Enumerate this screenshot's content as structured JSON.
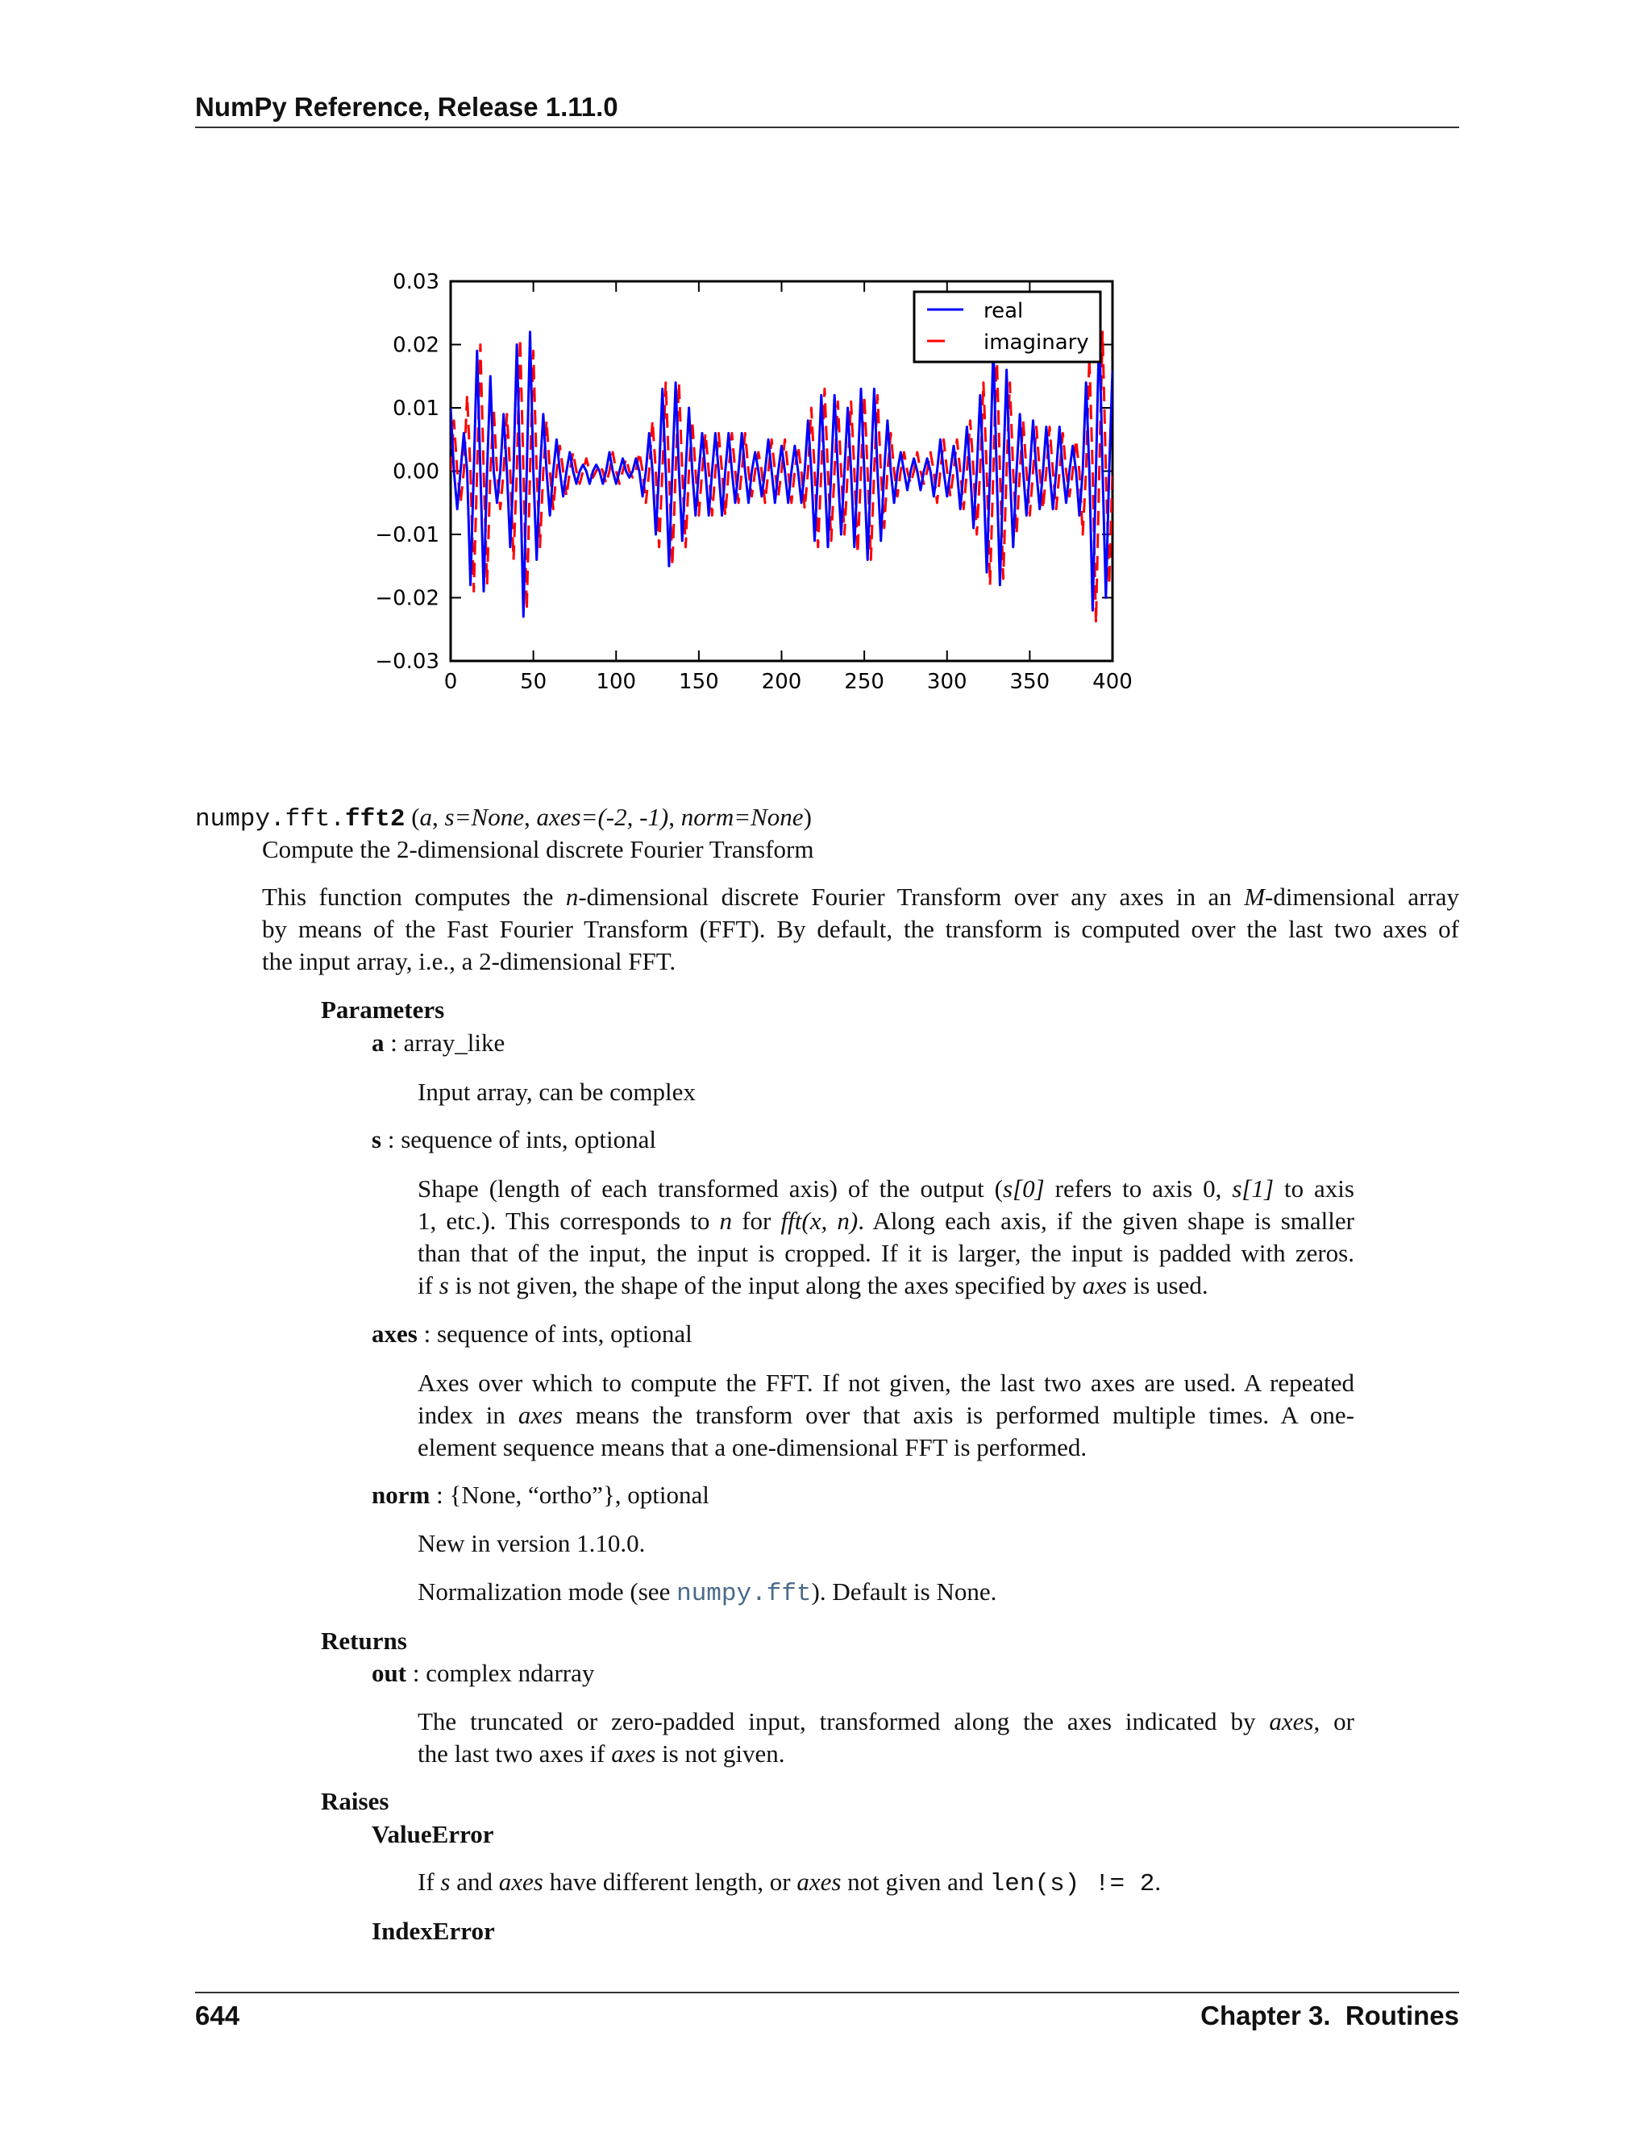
{
  "header": {
    "title": "NumPy Reference, Release 1.11.0"
  },
  "footer": {
    "page": "644",
    "chapter": "Chapter 3.  Routines"
  },
  "chart_data": {
    "type": "line",
    "xlim": [
      0,
      400
    ],
    "ylim": [
      -0.03,
      0.03
    ],
    "x_ticks": [
      "0",
      "50",
      "100",
      "150",
      "200",
      "250",
      "300",
      "350",
      "400"
    ],
    "y_ticks": [
      "0.03",
      "0.02",
      "0.01",
      "0.00",
      "−0.01",
      "−0.02",
      "−0.03"
    ],
    "legend_position": "top-right",
    "grid": false,
    "x_step": 2,
    "series": [
      {
        "name": "real",
        "color": "#0000ff",
        "style": "solid",
        "values": [
          0.01,
          0,
          -0.006,
          0,
          0.006,
          0,
          -0.018,
          0,
          0.019,
          0,
          -0.019,
          0,
          0.015,
          0,
          -0.005,
          0,
          0.009,
          0,
          -0.012,
          0,
          0.02,
          0,
          -0.023,
          0,
          0.022,
          0,
          -0.014,
          0,
          0.009,
          0,
          -0.007,
          0,
          0.005,
          0,
          -0.004,
          0,
          0.003,
          0,
          -0.002,
          0,
          0.001,
          0,
          -0.002,
          0,
          0.001,
          0,
          -0.002,
          0,
          0.003,
          0,
          -0.002,
          0,
          0.002,
          0,
          -0.001,
          0,
          0.002,
          0,
          -0.004,
          0,
          0.006,
          0,
          -0.01,
          0,
          0.013,
          0,
          -0.015,
          0,
          0.014,
          0,
          -0.011,
          0,
          0.01,
          0,
          -0.007,
          0,
          0.006,
          0,
          -0.007,
          0,
          0.006,
          0,
          -0.007,
          0,
          0.006,
          0,
          -0.005,
          0,
          0.006,
          0,
          -0.005,
          0,
          0.003,
          0,
          -0.004,
          0,
          0.005,
          0,
          -0.005,
          0,
          0.004,
          0,
          -0.005,
          0,
          0.004,
          0,
          -0.005,
          0,
          0.008,
          0,
          -0.011,
          0,
          0.012,
          0,
          -0.012,
          0,
          0.012,
          0,
          -0.01,
          0,
          0.01,
          0,
          -0.012,
          0,
          0.013,
          0,
          -0.014,
          0,
          0.013,
          0,
          -0.011,
          0,
          0.008,
          0,
          -0.005,
          0,
          0.003,
          0,
          -0.003,
          0,
          0.002,
          0,
          -0.003,
          0,
          0.002,
          0,
          -0.004,
          0,
          0.005,
          0,
          -0.004,
          0,
          0.004,
          0,
          -0.006,
          0,
          0.007,
          0,
          -0.009,
          0,
          0.012,
          0,
          -0.016,
          0,
          0.02,
          0,
          -0.018,
          0,
          0.016,
          0,
          -0.012,
          0,
          0.009,
          0,
          -0.007,
          0,
          0.008,
          0,
          -0.006,
          0,
          0.007,
          0,
          -0.006,
          0,
          0.007,
          0,
          -0.005,
          0,
          0.004,
          0,
          -0.007,
          0,
          0.014,
          0,
          -0.022,
          0,
          0.023,
          0,
          -0.02,
          0,
          0.016
        ]
      },
      {
        "name": "imaginary",
        "color": "#ff0000",
        "style": "dashed",
        "values": [
          0,
          0.008,
          0,
          -0.005,
          0,
          0.012,
          0,
          -0.019,
          0,
          0.02,
          0,
          -0.018,
          0,
          0.01,
          0,
          -0.006,
          0,
          0.009,
          0,
          -0.014,
          0,
          0.021,
          0,
          -0.022,
          0,
          0.019,
          0,
          -0.012,
          0,
          0.008,
          0,
          -0.006,
          0,
          0.004,
          0,
          -0.004,
          0,
          0.003,
          0,
          -0.002,
          0,
          0.002,
          0,
          -0.001,
          0,
          0.001,
          0,
          -0.002,
          0,
          0.003,
          0,
          -0.002,
          0,
          0.002,
          0,
          -0.001,
          0,
          0.003,
          0,
          -0.005,
          0,
          0.008,
          0,
          -0.012,
          0,
          0.014,
          0,
          -0.015,
          0,
          0.014,
          0,
          -0.012,
          0,
          0.008,
          0,
          -0.007,
          0,
          0.006,
          0,
          -0.007,
          0,
          0.006,
          0,
          -0.007,
          0,
          0.006,
          0,
          -0.005,
          0,
          0.006,
          0,
          -0.004,
          0,
          0.003,
          0,
          -0.005,
          0,
          0.005,
          0,
          -0.004,
          0,
          0.005,
          0,
          -0.005,
          0,
          0.004,
          0,
          -0.006,
          0,
          0.01,
          0,
          -0.012,
          0,
          0.013,
          0,
          -0.011,
          0,
          0.011,
          0,
          -0.01,
          0,
          0.011,
          0,
          -0.013,
          0,
          0.012,
          0,
          -0.014,
          0,
          0.012,
          0,
          -0.009,
          0,
          0.006,
          0,
          -0.004,
          0,
          0.003,
          0,
          -0.002,
          0,
          0.003,
          0,
          -0.002,
          0,
          0.003,
          0,
          -0.005,
          0,
          0.005,
          0,
          -0.004,
          0,
          0.005,
          0,
          -0.006,
          0,
          0.008,
          0,
          -0.01,
          0,
          0.014,
          0,
          -0.018,
          0,
          0.019,
          0,
          -0.017,
          0,
          0.014,
          0,
          -0.01,
          0,
          0.008,
          0,
          -0.007,
          0,
          0.007,
          0,
          -0.006,
          0,
          0.007,
          0,
          -0.006,
          0,
          0.006,
          0,
          -0.004,
          0,
          0.005,
          0,
          -0.01,
          0,
          0.018,
          0,
          -0.024,
          0,
          0.022,
          0,
          -0.018,
          0
        ]
      }
    ]
  },
  "doc": {
    "signature": [
      {
        "t": "numpy.fft.",
        "c": "mono"
      },
      {
        "t": "fft2",
        "c": "mono b"
      },
      {
        "t": " (",
        "c": ""
      },
      {
        "t": "a",
        "c": "i"
      },
      {
        "t": ", ",
        "c": ""
      },
      {
        "t": "s=None",
        "c": "i"
      },
      {
        "t": ", ",
        "c": ""
      },
      {
        "t": "axes=(-2, -1)",
        "c": "i"
      },
      {
        "t": ", ",
        "c": ""
      },
      {
        "t": "norm=None",
        "c": "i"
      },
      {
        "t": ")",
        "c": ""
      }
    ],
    "summary": "Compute the 2-dimensional discrete Fourier Transform",
    "intro": [
      [
        {
          "t": "This function computes the "
        },
        {
          "t": "n",
          "c": "i"
        },
        {
          "t": "-dimensional discrete Fourier Transform over any axes in an "
        },
        {
          "t": "M",
          "c": "i"
        },
        {
          "t": "-dimensional array"
        }
      ],
      [
        {
          "t": "by means of the Fast Fourier Transform (FFT). By default, the transform is computed over the last two axes of"
        }
      ],
      [
        {
          "t": "the input array, i.e., a 2-dimensional FFT."
        }
      ]
    ],
    "parameters_heading": "Parameters",
    "param_a": [
      {
        "t": "a",
        "c": "b"
      },
      {
        "t": " : array_like"
      }
    ],
    "param_a_desc": [
      [
        {
          "t": "Input array, can be complex"
        }
      ]
    ],
    "param_s": [
      {
        "t": "s",
        "c": "b"
      },
      {
        "t": " : sequence of ints, optional"
      }
    ],
    "param_s_desc": [
      [
        {
          "t": "Shape (length of each transformed axis) of the output ("
        },
        {
          "t": "s[0]",
          "c": "i"
        },
        {
          "t": " refers to axis 0, "
        },
        {
          "t": "s[1]",
          "c": "i"
        },
        {
          "t": " to axis"
        }
      ],
      [
        {
          "t": "1, etc.). This corresponds to "
        },
        {
          "t": "n",
          "c": "i"
        },
        {
          "t": " for "
        },
        {
          "t": "fft(x, n)",
          "c": "i"
        },
        {
          "t": ". Along each axis, if the given shape is smaller"
        }
      ],
      [
        {
          "t": "than that of the input, the input is cropped. If it is larger, the input is padded with zeros."
        }
      ],
      [
        {
          "t": "if "
        },
        {
          "t": "s",
          "c": "i"
        },
        {
          "t": " is not given, the shape of the input along the axes specified by "
        },
        {
          "t": "axes",
          "c": "i"
        },
        {
          "t": " is used."
        }
      ]
    ],
    "param_axes": [
      {
        "t": "axes",
        "c": "b"
      },
      {
        "t": " : sequence of ints, optional"
      }
    ],
    "param_axes_desc": [
      [
        {
          "t": "Axes over which to compute the FFT. If not given, the last two axes are used. A repeated"
        }
      ],
      [
        {
          "t": "index in "
        },
        {
          "t": "axes",
          "c": "i"
        },
        {
          "t": " means the transform over that axis is performed multiple times. A one-"
        }
      ],
      [
        {
          "t": "element sequence means that a one-dimensional FFT is performed."
        }
      ]
    ],
    "param_norm": [
      {
        "t": "norm",
        "c": "b"
      },
      {
        "t": " : {None, “ortho”}, optional"
      }
    ],
    "param_norm_new": [
      [
        {
          "t": "New in version 1.10.0."
        }
      ]
    ],
    "param_norm_desc": [
      [
        {
          "t": "Normalization mode (see "
        },
        {
          "t": "numpy.fft",
          "c": "mono link"
        },
        {
          "t": "). Default is None."
        }
      ]
    ],
    "returns_heading": "Returns",
    "ret_out": [
      {
        "t": "out",
        "c": "b"
      },
      {
        "t": " : complex ndarray"
      }
    ],
    "ret_out_desc": [
      [
        {
          "t": "The truncated or zero-padded input, transformed along the axes indicated by "
        },
        {
          "t": "axes",
          "c": "i"
        },
        {
          "t": ", or"
        }
      ],
      [
        {
          "t": "the last two axes if "
        },
        {
          "t": "axes",
          "c": "i"
        },
        {
          "t": " is not given."
        }
      ]
    ],
    "raises_heading": "Raises",
    "raise_value": "ValueError",
    "raise_value_desc": [
      [
        {
          "t": "If "
        },
        {
          "t": "s",
          "c": "i"
        },
        {
          "t": " and "
        },
        {
          "t": "axes",
          "c": "i"
        },
        {
          "t": " have different length, or "
        },
        {
          "t": "axes",
          "c": "i"
        },
        {
          "t": " not given and "
        },
        {
          "t": "len(s)  != 2",
          "c": "mono"
        },
        {
          "t": "."
        }
      ]
    ],
    "raise_index": "IndexError"
  }
}
